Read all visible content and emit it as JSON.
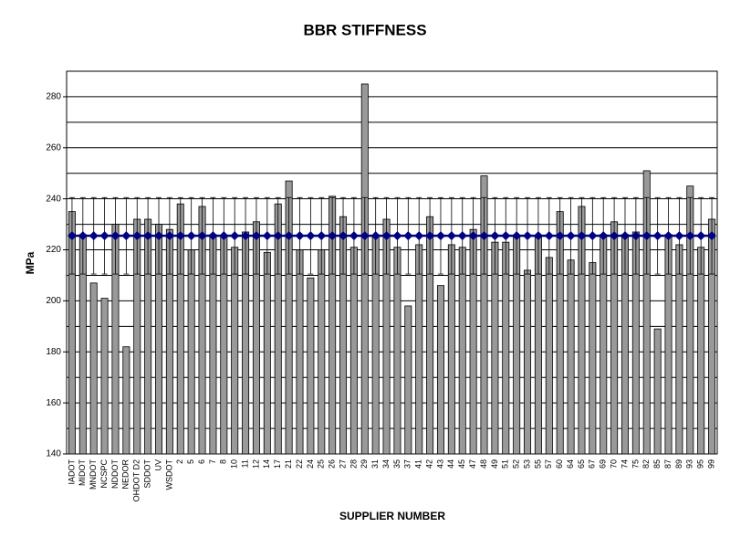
{
  "chart_data": {
    "type": "bar",
    "title": "BBR STIFFNESS",
    "x_label": "SUPPLIER NUMBER",
    "y_label": "MPa",
    "categories": [
      "IADOT",
      "MIDOT",
      "MNDOT",
      "NCSPC",
      "NDDOT",
      "NEDOR",
      "OHDOT D2",
      "SDDOT",
      "UV",
      "WSDOT",
      "2",
      "5",
      "6",
      "7",
      "8",
      "10",
      "11",
      "12",
      "14",
      "17",
      "21",
      "22",
      "24",
      "25",
      "26",
      "27",
      "28",
      "29",
      "31",
      "34",
      "35",
      "37",
      "41",
      "42",
      "43",
      "44",
      "45",
      "47",
      "48",
      "49",
      "51",
      "52",
      "53",
      "55",
      "57",
      "60",
      "64",
      "65",
      "67",
      "69",
      "70",
      "74",
      "75",
      "82",
      "85",
      "87",
      "89",
      "93",
      "95",
      "99"
    ],
    "series": [
      {
        "color": "#999999",
        "values": [
          235,
          226,
          207,
          201,
          230,
          182,
          232,
          232,
          230,
          228,
          238,
          220,
          237,
          226,
          225,
          221,
          227,
          231,
          219,
          238,
          247,
          220,
          209,
          220,
          241,
          233,
          221,
          285,
          225,
          232,
          221,
          198,
          222,
          233,
          206,
          222,
          221,
          228,
          249,
          223,
          223,
          225,
          212,
          225,
          217,
          235,
          216,
          237,
          215,
          226,
          231,
          226,
          227,
          251,
          189,
          226,
          222,
          245,
          221,
          232
        ]
      },
      {
        "type": "line",
        "color": "#000080",
        "values": [
          225.5,
          225.5,
          225.5,
          225.5,
          225.5,
          225.5,
          225.5,
          225.5,
          225.5,
          225.5,
          225.5,
          225.5,
          225.5,
          225.5,
          225.5,
          225.5,
          225.5,
          225.5,
          225.5,
          225.5,
          225.5,
          225.5,
          225.5,
          225.5,
          225.5,
          225.5,
          225.5,
          225.5,
          225.5,
          225.5,
          225.5,
          225.5,
          225.5,
          225.5,
          225.5,
          225.5,
          225.5,
          225.5,
          225.5,
          225.5,
          225.5,
          225.5,
          225.5,
          225.5,
          225.5,
          225.5,
          225.5,
          225.5,
          225.5,
          225.5,
          225.5,
          225.5,
          225.5,
          225.5,
          225.5,
          225.5,
          225.5,
          225.5,
          225.5,
          225.5
        ],
        "errors": [
          15,
          15,
          15,
          15,
          15,
          15,
          15,
          15,
          15,
          15,
          15,
          15,
          15,
          15,
          15,
          15,
          15,
          15,
          15,
          15,
          15,
          15,
          15,
          15,
          15,
          15,
          15,
          15,
          15,
          15,
          15,
          15,
          15,
          15,
          15,
          15,
          15,
          15,
          15,
          15,
          15,
          15,
          15,
          15,
          15,
          15,
          15,
          15,
          15,
          15,
          15,
          15,
          15,
          15,
          15,
          15,
          15,
          15,
          15,
          15
        ]
      }
    ],
    "ylim": [
      140,
      290
    ],
    "yticks": [
      140,
      160,
      180,
      200,
      220,
      240,
      260,
      280
    ],
    "ygrid": [
      150,
      160,
      170,
      180,
      190,
      200,
      210,
      220,
      230,
      240,
      250,
      260,
      270,
      280
    ],
    "grid": true
  }
}
